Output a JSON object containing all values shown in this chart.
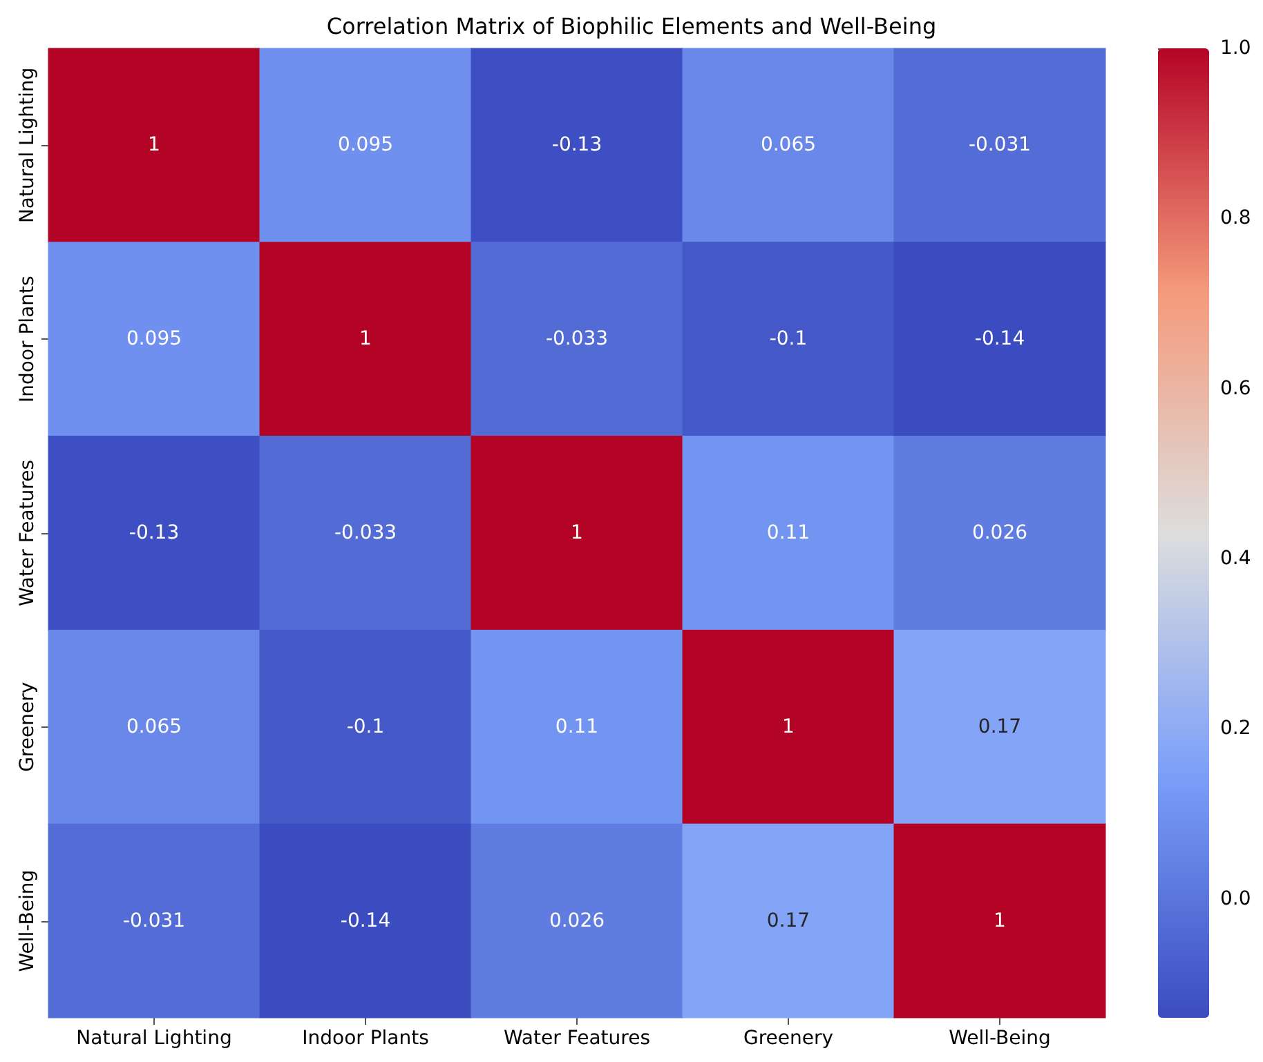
{
  "chart_data": {
    "type": "heatmap",
    "title": "Correlation Matrix of Biophilic Elements and Well-Being",
    "categories": [
      "Natural Lighting",
      "Indoor Plants",
      "Water Features",
      "Greenery",
      "Well-Being"
    ],
    "y_categories": [
      "Natural Lighting",
      "Indoor Plants",
      "Water Features",
      "Greenery",
      "Well-Being"
    ],
    "cells": [
      [
        1,
        0.095,
        -0.13,
        0.065,
        -0.031
      ],
      [
        0.095,
        1,
        -0.033,
        -0.1,
        -0.14
      ],
      [
        -0.13,
        -0.033,
        1,
        0.11,
        0.026
      ],
      [
        0.065,
        -0.1,
        0.11,
        1,
        0.17
      ],
      [
        -0.031,
        -0.14,
        0.026,
        0.17,
        1
      ]
    ],
    "clim": [
      -0.14,
      1.0
    ],
    "cticks": [
      {
        "value": 0.0,
        "label": "0.0"
      },
      {
        "value": 0.2,
        "label": "0.2"
      },
      {
        "value": 0.4,
        "label": "0.4"
      },
      {
        "value": 0.6,
        "label": "0.6"
      },
      {
        "value": 0.8,
        "label": "0.8"
      },
      {
        "value": 1.0,
        "label": "1.0"
      }
    ],
    "data_labels": true
  }
}
